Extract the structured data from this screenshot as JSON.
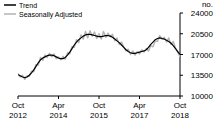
{
  "chart_data": {
    "type": "line",
    "y_label": "no.",
    "categories": [
      "Oct 2012",
      null,
      null,
      null,
      null,
      null,
      null,
      null,
      null,
      null,
      null,
      null,
      null,
      null,
      null,
      null,
      null,
      null,
      "Apr 2014",
      null,
      null,
      null,
      null,
      null,
      null,
      null,
      null,
      null,
      null,
      null,
      null,
      null,
      null,
      null,
      null,
      null,
      "Oct 2015",
      null,
      null,
      null,
      null,
      null,
      null,
      null,
      null,
      null,
      null,
      null,
      null,
      null,
      null,
      null,
      null,
      null,
      "Apr 2017",
      null,
      null,
      null,
      null,
      null,
      null,
      null,
      null,
      null,
      null,
      null,
      null,
      null,
      null,
      null,
      null,
      null,
      "Oct 2018"
    ],
    "series": [
      {
        "name": "Trend",
        "color": "#000000",
        "values": [
          13600,
          13400,
          13200,
          13100,
          13200,
          13500,
          13900,
          14400,
          15000,
          15600,
          16100,
          16400,
          16600,
          16800,
          16900,
          16900,
          16800,
          16600,
          16400,
          16300,
          16300,
          16500,
          16900,
          17400,
          18000,
          18600,
          19100,
          19500,
          19800,
          20100,
          20300,
          20400,
          20400,
          20300,
          20200,
          20100,
          20000,
          20000,
          20100,
          20200,
          20200,
          20100,
          19900,
          19600,
          19300,
          19000,
          18600,
          18200,
          17800,
          17500,
          17300,
          17200,
          17200,
          17300,
          17400,
          17500,
          17600,
          17800,
          18200,
          18700,
          19100,
          19500,
          19700,
          19800,
          19700,
          19600,
          19400,
          19200,
          18900,
          18500,
          18000,
          17500,
          17000
        ]
      },
      {
        "name": "Seasonally Adjusted",
        "color": "#b3b3b3",
        "values": [
          13800,
          13200,
          13500,
          12800,
          13400,
          13300,
          14200,
          14100,
          15300,
          15200,
          16500,
          16000,
          16900,
          16500,
          17200,
          16600,
          17100,
          16300,
          16600,
          16100,
          16700,
          16200,
          17300,
          17100,
          18300,
          18200,
          19500,
          19000,
          20300,
          19600,
          20900,
          19800,
          21000,
          20100,
          20800,
          19700,
          20500,
          19600,
          20900,
          19900,
          20600,
          20000,
          20400,
          19300,
          19800,
          18700,
          19100,
          18300,
          17600,
          17900,
          17000,
          17600,
          16900,
          17500,
          17100,
          17800,
          17400,
          18000,
          17600,
          18500,
          18300,
          19300,
          19200,
          20200,
          19600,
          19900,
          19100,
          19800,
          18700,
          19200,
          18100,
          17400,
          16600
        ]
      }
    ],
    "ylim": [
      10000,
      24000
    ],
    "yticks": [
      10000,
      13500,
      17000,
      20500,
      24000
    ],
    "grid": false,
    "legend": "top-left"
  }
}
